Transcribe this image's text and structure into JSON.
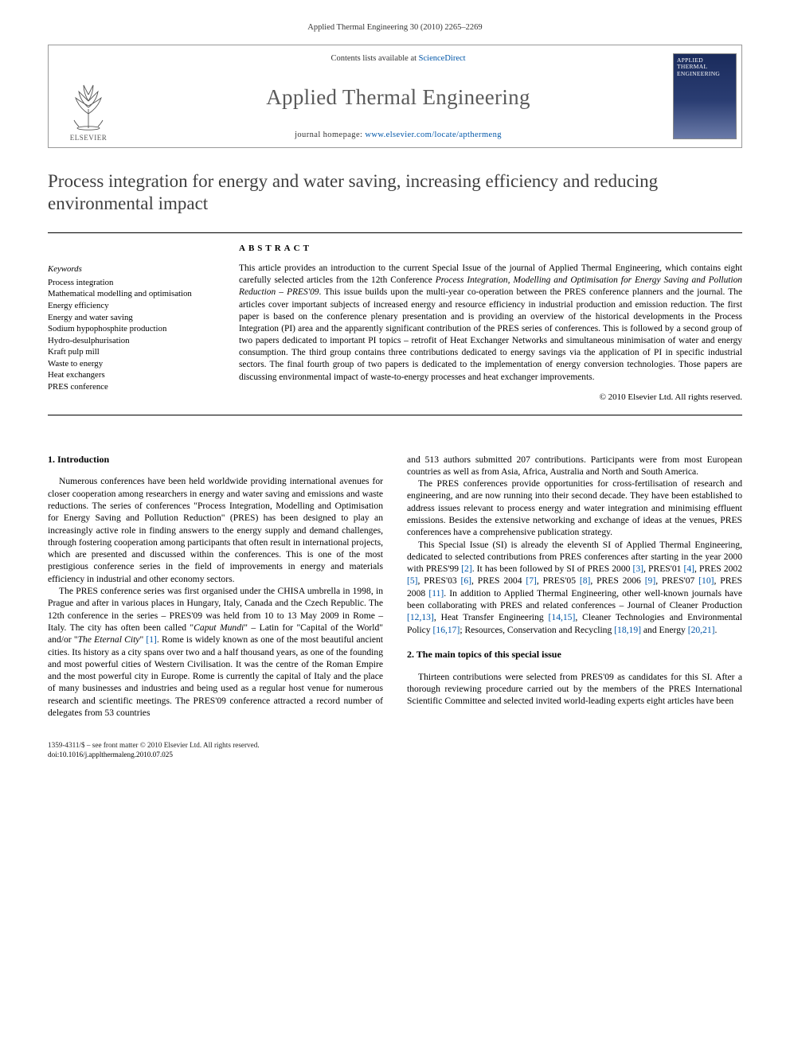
{
  "citation": "Applied Thermal Engineering 30 (2010) 2265–2269",
  "banner": {
    "contents_prefix": "Contents lists available at ",
    "contents_link": "ScienceDirect",
    "journal": "Applied Thermal Engineering",
    "homepage_prefix": "journal homepage: ",
    "homepage_url": "www.elsevier.com/locate/apthermeng",
    "publisher": "ELSEVIER",
    "cover_title": "APPLIED THERMAL ENGINEERING"
  },
  "title": "Process integration for energy and water saving, increasing efficiency and reducing environmental impact",
  "keywords_head": "Keywords",
  "keywords": [
    "Process integration",
    "Mathematical modelling and optimisation",
    "Energy efficiency",
    "Energy and water saving",
    "Sodium hypophosphite production",
    "Hydro-desulphurisation",
    "Kraft pulp mill",
    "Waste to energy",
    "Heat exchangers",
    "PRES conference"
  ],
  "abstract_head": "ABSTRACT",
  "abstract_html": "This article provides an introduction to the current Special Issue of the journal of Applied Thermal Engineering, which contains eight carefully selected articles from the 12th Conference <em>Process Integration, Modelling and Optimisation for Energy Saving and Pollution Reduction – PRES'09</em>. This issue builds upon the multi-year co-operation between the PRES conference planners and the journal. The articles cover important subjects of increased energy and resource efficiency in industrial production and emission reduction. The first paper is based on the conference plenary presentation and is providing an overview of the historical developments in the Process Integration (PI) area and the apparently significant contribution of the PRES series of conferences. This is followed by a second group of two papers dedicated to important PI topics – retrofit of Heat Exchanger Networks and simultaneous minimisation of water and energy consumption. The third group contains three contributions dedicated to energy savings via the application of PI in specific industrial sectors. The final fourth group of two papers is dedicated to the implementation of energy conversion technologies. Those papers are discussing environmental impact of waste-to-energy processes and heat exchanger improvements.",
  "copyright": "© 2010 Elsevier Ltd. All rights reserved.",
  "sections": {
    "s1_head": "1. Introduction",
    "s1_p1": "Numerous conferences have been held worldwide providing international avenues for closer cooperation among researchers in energy and water saving and emissions and waste reductions. The series of conferences \"Process Integration, Modelling and Optimisation for Energy Saving and Pollution Reduction\" (PRES) has been designed to play an increasingly active role in finding answers to the energy supply and demand challenges, through fostering cooperation among participants that often result in international projects, which are presented and discussed within the conferences. This is one of the most prestigious conference series in the field of improvements in energy and materials efficiency in industrial and other economy sectors.",
    "s1_p2_html": "The PRES conference series was first organised under the CHISA umbrella in 1998, in Prague and after in various places in Hungary, Italy, Canada and the Czech Republic. The 12th conference in the series – PRES'09 was held from 10 to 13 May 2009 in Rome – Italy. The city has often been called \"<em>Caput Mundi</em>\" – Latin for \"Capital of the World\" and/or \"<em>The Eternal City</em>\" <span class='ref'>[1]</span>. Rome is widely known as one of the most beautiful ancient cities. Its history as a city spans over two and a half thousand years, as one of the founding and most powerful cities of Western Civilisation. It was the centre of the Roman Empire and the most powerful city in Europe. Rome is currently the capital of Italy and the place of many businesses and industries and being used as a regular host venue for numerous research and scientific meetings. The PRES'09 conference attracted a record number of delegates from 53 countries",
    "s1_p2b": "and 513 authors submitted 207 contributions. Participants were from most European countries as well as from Asia, Africa, Australia and North and South America.",
    "s1_p3": "The PRES conferences provide opportunities for cross-fertilisation of research and engineering, and are now running into their second decade. They have been established to address issues relevant to process energy and water integration and minimising effluent emissions. Besides the extensive networking and exchange of ideas at the venues, PRES conferences have a comprehensive publication strategy.",
    "s1_p4_html": "This Special Issue (SI) is already the eleventh SI of Applied Thermal Engineering, dedicated to selected contributions from PRES conferences after starting in the year 2000 with PRES'99 <span class='ref'>[2]</span>. It has been followed by SI of PRES 2000 <span class='ref'>[3]</span>, PRES'01 <span class='ref'>[4]</span>, PRES 2002 <span class='ref'>[5]</span>, PRES'03 <span class='ref'>[6]</span>, PRES 2004 <span class='ref'>[7]</span>, PRES'05 <span class='ref'>[8]</span>, PRES 2006 <span class='ref'>[9]</span>, PRES'07 <span class='ref'>[10]</span>, PRES 2008 <span class='ref'>[11]</span>. In addition to Applied Thermal Engineering, other well-known journals have been collaborating with PRES and related conferences – Journal of Cleaner Production <span class='ref'>[12,13]</span>, Heat Transfer Engineering <span class='ref'>[14,15]</span>, Cleaner Technologies and Environmental Policy <span class='ref'>[16,17]</span>; Resources, Conservation and Recycling <span class='ref'>[18,19]</span> and Energy <span class='ref'>[20,21]</span>.",
    "s2_head": "2. The main topics of this special issue",
    "s2_p1": "Thirteen contributions were selected from PRES'09 as candidates for this SI. After a thorough reviewing procedure carried out by the members of the PRES International Scientific Committee and selected invited world-leading experts eight articles have been"
  },
  "footer": {
    "line1": "1359-4311/$ – see front matter © 2010 Elsevier Ltd. All rights reserved.",
    "line2": "doi:10.1016/j.applthermaleng.2010.07.025"
  },
  "colors": {
    "link": "#0056a8",
    "text": "#000000",
    "title_gray": "#3f3f3f",
    "cover_top": "#1a2b5c",
    "cover_bottom": "#6a7aa8"
  }
}
